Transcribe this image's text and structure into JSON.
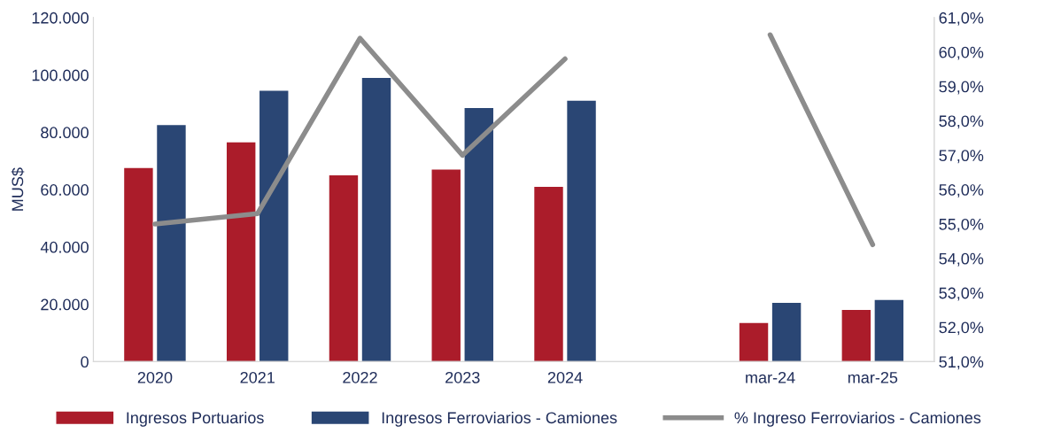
{
  "chart_data": {
    "type": "bar",
    "ylabel": "MUS$",
    "legend": "bottom",
    "grid": false,
    "categories": [
      "2020",
      "2021",
      "2022",
      "2023",
      "2024",
      null,
      "mar-24",
      "mar-25"
    ],
    "series": [
      {
        "name": "Ingresos Portuarios",
        "color": "#ab1c2a",
        "values": [
          67500,
          76500,
          65000,
          67000,
          61000,
          null,
          13500,
          18000
        ]
      },
      {
        "name": "Ingresos Ferroviarios - Camiones",
        "color": "#2a4674",
        "values": [
          82500,
          94500,
          99000,
          88500,
          91000,
          null,
          20500,
          21500
        ]
      },
      {
        "name": "% Ingreso Ferroviarios - Camiones",
        "type": "line",
        "axis": "y2",
        "color": "#8c8c8c",
        "marker": "none",
        "line_style": "solid",
        "values": [
          55.0,
          55.3,
          60.4,
          57.0,
          59.8,
          null,
          60.5,
          54.4
        ]
      }
    ],
    "ylim": [
      0,
      120000
    ],
    "yticks": [
      {
        "value": 0,
        "label": "0"
      },
      {
        "value": 20000,
        "label": "20.000"
      },
      {
        "value": 40000,
        "label": "40.000"
      },
      {
        "value": 60000,
        "label": "60.000"
      },
      {
        "value": 80000,
        "label": "80.000"
      },
      {
        "value": 100000,
        "label": "100.000"
      },
      {
        "value": 120000,
        "label": "120.000"
      }
    ],
    "y2lim": [
      51,
      61
    ],
    "y2ticks": [
      {
        "value": 51,
        "label": "51,0%"
      },
      {
        "value": 52,
        "label": "52,0%"
      },
      {
        "value": 53,
        "label": "53,0%"
      },
      {
        "value": 54,
        "label": "54,0%"
      },
      {
        "value": 55,
        "label": "55,0%"
      },
      {
        "value": 56,
        "label": "56,0%"
      },
      {
        "value": 57,
        "label": "57,0%"
      },
      {
        "value": 58,
        "label": "58,0%"
      },
      {
        "value": 59,
        "label": "59,0%"
      },
      {
        "value": 60,
        "label": "60,0%"
      },
      {
        "value": 61,
        "label": "61,0%"
      }
    ]
  }
}
